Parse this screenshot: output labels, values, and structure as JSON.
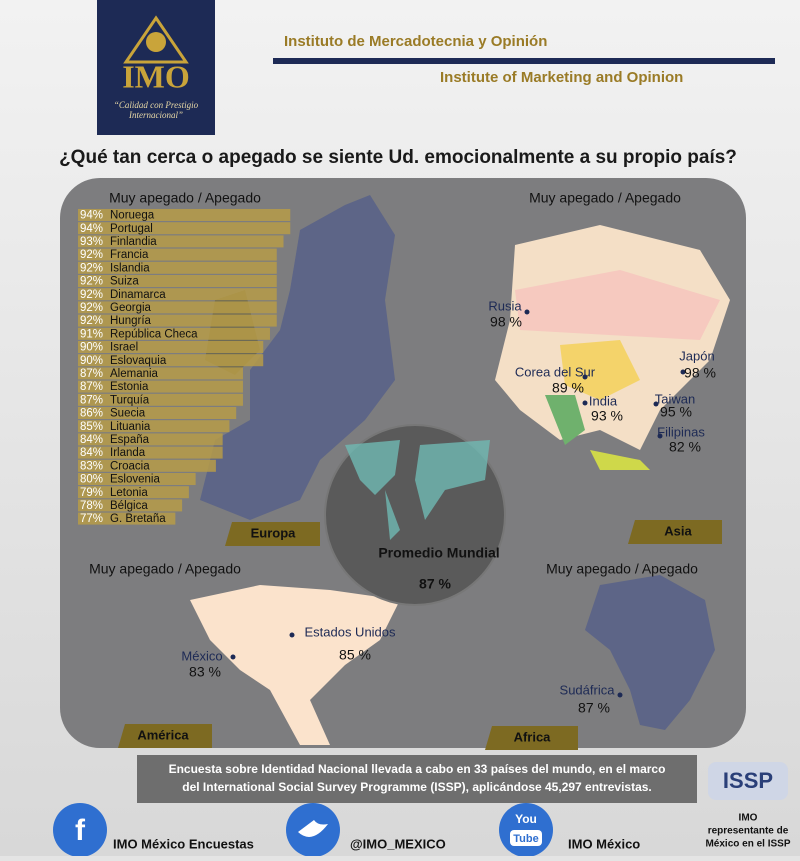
{
  "header": {
    "logo_text": "IMO",
    "logo_tagline": "“Calidad con Prestigio Internacional”",
    "title_es": "Instituto de Mercadotecnia y Opinión",
    "title_en": "Institute of Marketing and Opinion"
  },
  "question": "¿Qué tan cerca o apegado se siente Ud. emocionalmente a su propio país?",
  "europe": {
    "heading": "Muy apegado / Apegado",
    "region": "Europa",
    "countries": [
      "Noruega",
      "Portugal",
      "Finlandia",
      "Francia",
      "Islandia",
      "Suiza",
      "Dinamarca",
      "Georgia",
      "Hungría",
      "República Checa",
      "Israel",
      "Eslovaquia",
      "Alemania",
      "Estonia",
      "Turquía",
      "Suecia",
      "Lituania",
      "España",
      "Irlanda",
      "Croacia",
      "Eslovenia",
      "Letonia",
      "Bélgica",
      "G. Bretaña"
    ],
    "values": [
      94,
      94,
      93,
      92,
      92,
      92,
      92,
      92,
      92,
      91,
      90,
      90,
      87,
      87,
      87,
      86,
      85,
      84,
      84,
      83,
      80,
      79,
      78,
      77
    ],
    "value_labels": [
      "94%",
      "94%",
      "93%",
      "92%",
      "92%",
      "92%",
      "92%",
      "92%",
      "92%",
      "91%",
      "90%",
      "90%",
      "87%",
      "87%",
      "87%",
      "86%",
      "85%",
      "84%",
      "84%",
      "83%",
      "80%",
      "79%",
      "78%",
      "77%"
    ]
  },
  "asia": {
    "heading": "Muy apegado / Apegado",
    "region": "Asia",
    "points": [
      {
        "name": "Rusia",
        "value": "98 %"
      },
      {
        "name": "Japón",
        "value": "98 %"
      },
      {
        "name": "Corea del Sur",
        "value": "89 %"
      },
      {
        "name": "India",
        "value": "93 %"
      },
      {
        "name": "Taiwan",
        "value": "95 %"
      },
      {
        "name": "Filipinas",
        "value": "82 %"
      }
    ]
  },
  "america": {
    "heading": "Muy apegado / Apegado",
    "region": "América",
    "points": [
      {
        "name": "México",
        "value": "83 %"
      },
      {
        "name": "Estados Unidos",
        "value": "85 %"
      }
    ]
  },
  "africa": {
    "heading": "Muy apegado / Apegado",
    "region": "Africa",
    "points": [
      {
        "name": "Sudáfrica",
        "value": "87 %"
      }
    ]
  },
  "world": {
    "label": "Promedio Mundial",
    "value": "87 %"
  },
  "footer": {
    "note": [
      "Encuesta sobre Identidad Nacional llevada a cabo en 33 países del mundo, en el marco",
      "del International Social Survey Programme (ISSP), aplicándose 45,297 entrevistas."
    ],
    "issp_logo": "ISSP",
    "facebook": "IMO México Encuestas",
    "twitter": "@IMO_MEXICO",
    "youtube_logo": [
      "You",
      "Tube"
    ],
    "youtube": "IMO México",
    "issp_note": [
      "IMO",
      "representante de",
      "México en el ISSP"
    ]
  }
}
